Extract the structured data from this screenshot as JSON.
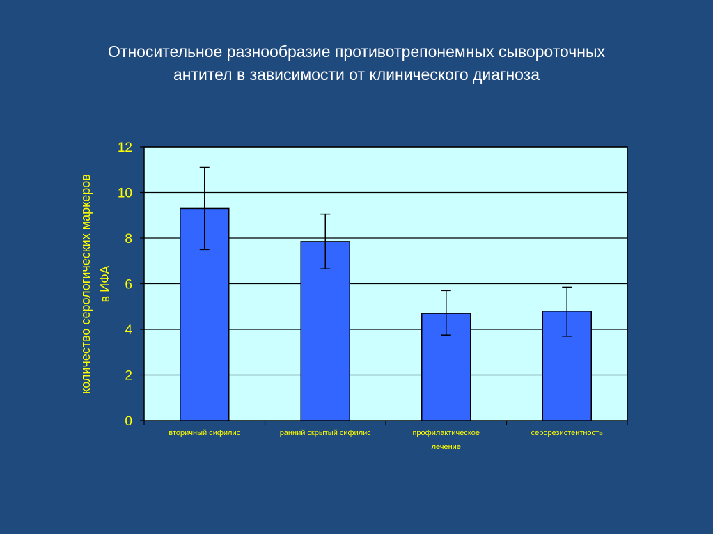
{
  "slide": {
    "title_lines": [
      "Относительное разнообразие противотрепонемных сывороточных",
      "антител в зависимости от клинического диагноза"
    ]
  },
  "colors": {
    "background": "#1f4a7e",
    "plot_area": "#ccffff",
    "bar_fill": "#3366ff",
    "text_yellow": "#ffff00"
  },
  "chart_data": {
    "type": "bar",
    "title": "",
    "xlabel": "",
    "ylabel": [
      "количество серологических маркеров",
      "в ИФА"
    ],
    "categories": [
      [
        "вторичный сифилис"
      ],
      [
        "ранний скрытый сифилис"
      ],
      [
        "профилактическое",
        "лечение"
      ],
      [
        "серорезистентность"
      ]
    ],
    "values": [
      9.3,
      7.85,
      4.7,
      4.8
    ],
    "error_low": [
      7.5,
      6.65,
      3.75,
      3.7
    ],
    "error_high": [
      11.1,
      9.05,
      5.7,
      5.85
    ],
    "ylim": [
      0,
      12
    ],
    "yticks": [
      0,
      2,
      4,
      6,
      8,
      10,
      12
    ],
    "grid": true,
    "legend": "none"
  }
}
